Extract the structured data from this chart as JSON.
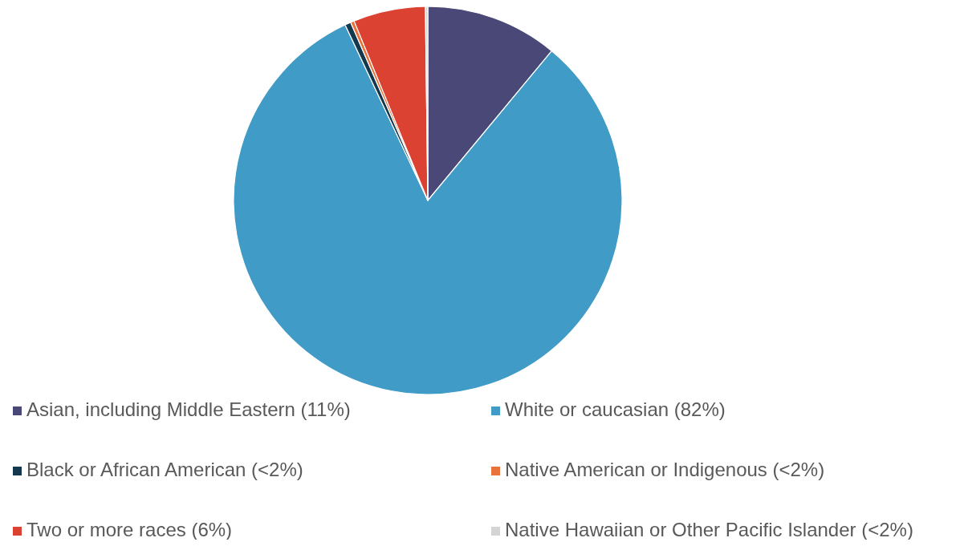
{
  "chart_data": {
    "type": "pie",
    "categories": [
      "Asian, including Middle Eastern (11%)",
      "White or caucasian (82%)",
      "Black or African American (<2%)",
      "Native American or Indigenous (<2%)",
      "Two or more races (6%)",
      "Native Hawaiian or Other Pacific Islander (<2%)"
    ],
    "values": [
      11,
      82,
      0.5,
      0.3,
      6,
      0.2
    ],
    "colors": [
      "#4a4877",
      "#419bc7",
      "#14384e",
      "#e9723a",
      "#dc4232",
      "#d4d4d4"
    ],
    "legend": "bottom"
  }
}
